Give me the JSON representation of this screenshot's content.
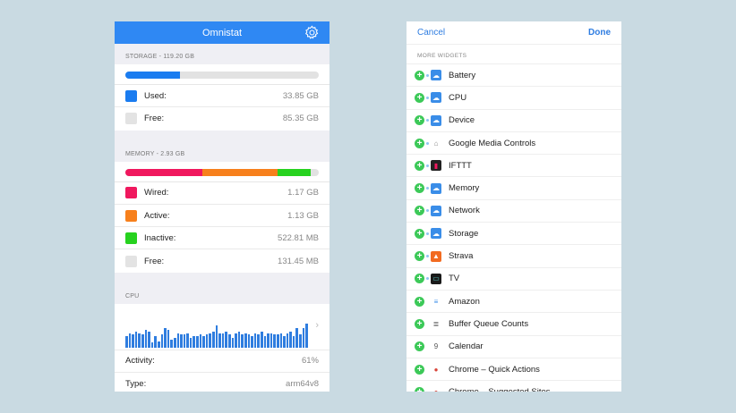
{
  "left": {
    "title": "Omnistat",
    "settings_icon": "gear-icon",
    "storage": {
      "header": "STORAGE - 119.20 GB",
      "used_fraction": 0.284,
      "rows": [
        {
          "label": "Used:",
          "value": "33.85 GB",
          "color": "#1a7cf0"
        },
        {
          "label": "Free:",
          "value": "85.35 GB",
          "color": "#e3e3e3"
        }
      ]
    },
    "memory": {
      "header": "MEMORY - 2.93 GB",
      "segments": [
        {
          "fraction": 0.4,
          "color": "#f0185e"
        },
        {
          "fraction": 0.385,
          "color": "#f7801c"
        },
        {
          "fraction": 0.175,
          "color": "#27d21f"
        }
      ],
      "rows": [
        {
          "label": "Wired:",
          "value": "1.17 GB",
          "color": "#f0185e"
        },
        {
          "label": "Active:",
          "value": "1.13 GB",
          "color": "#f7801c"
        },
        {
          "label": "Inactive:",
          "value": "522.81 MB",
          "color": "#27d21f"
        },
        {
          "label": "Free:",
          "value": "131.45 MB",
          "color": "#e3e3e3"
        }
      ]
    },
    "cpu": {
      "header": "CPU",
      "history": [
        35,
        45,
        40,
        50,
        45,
        40,
        55,
        50,
        15,
        35,
        20,
        40,
        60,
        55,
        25,
        30,
        45,
        40,
        40,
        45,
        30,
        35,
        35,
        40,
        35,
        40,
        45,
        50,
        70,
        45,
        45,
        50,
        40,
        30,
        45,
        50,
        40,
        45,
        40,
        35,
        45,
        40,
        50,
        35,
        45,
        45,
        40,
        40,
        45,
        35,
        45,
        50,
        35,
        60,
        40,
        60,
        75
      ],
      "rows": [
        {
          "label": "Activity:",
          "value": "61%"
        },
        {
          "label": "Type:",
          "value": "arm64v8"
        }
      ]
    }
  },
  "right": {
    "cancel": "Cancel",
    "done": "Done",
    "section": "MORE WIDGETS",
    "items": [
      {
        "label": "Battery",
        "icon": "omnistat-icon",
        "color": "#3a8de8",
        "linked": true
      },
      {
        "label": "CPU",
        "icon": "omnistat-icon",
        "color": "#3a8de8",
        "linked": true
      },
      {
        "label": "Device",
        "icon": "omnistat-icon",
        "color": "#3a8de8",
        "linked": true
      },
      {
        "label": "Google Media Controls",
        "icon": "google-home-icon",
        "color": "#ffffff",
        "linked": true
      },
      {
        "label": "IFTTT",
        "icon": "ifttt-icon",
        "color": "#222222",
        "linked": true
      },
      {
        "label": "Memory",
        "icon": "omnistat-icon",
        "color": "#3a8de8",
        "linked": true
      },
      {
        "label": "Network",
        "icon": "omnistat-icon",
        "color": "#3a8de8",
        "linked": true
      },
      {
        "label": "Storage",
        "icon": "omnistat-icon",
        "color": "#3a8de8",
        "linked": true
      },
      {
        "label": "Strava",
        "icon": "strava-icon",
        "color": "#f26b21",
        "linked": true
      },
      {
        "label": "TV",
        "icon": "tv-icon",
        "color": "#1a1a1a",
        "linked": true
      },
      {
        "label": "Amazon",
        "icon": "amazon-icon",
        "color": "#ffffff",
        "linked": false
      },
      {
        "label": "Buffer Queue Counts",
        "icon": "buffer-icon",
        "color": "#ffffff",
        "linked": false
      },
      {
        "label": "Calendar",
        "icon": "calendar-icon",
        "color": "#ffffff",
        "linked": false
      },
      {
        "label": "Chrome – Quick Actions",
        "icon": "chrome-icon",
        "color": "#ffffff",
        "linked": false
      },
      {
        "label": "Chrome – Suggested Sites",
        "icon": "chrome-icon",
        "color": "#ffffff",
        "linked": false
      }
    ]
  }
}
